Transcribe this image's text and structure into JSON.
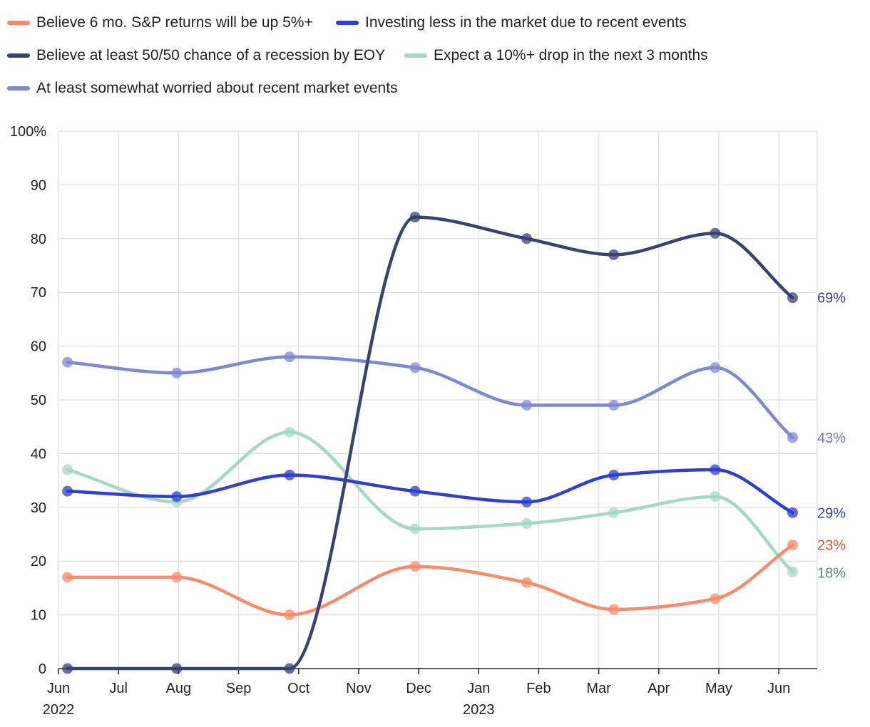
{
  "chart_data": {
    "type": "line",
    "title": "",
    "xlabel": "",
    "ylabel": "",
    "ylim": [
      0,
      100
    ],
    "y_ticks": [
      {
        "value": 0,
        "label": "0"
      },
      {
        "value": 10,
        "label": "10"
      },
      {
        "value": 20,
        "label": "20"
      },
      {
        "value": 30,
        "label": "30"
      },
      {
        "value": 40,
        "label": "40"
      },
      {
        "value": 50,
        "label": "50"
      },
      {
        "value": 60,
        "label": "60"
      },
      {
        "value": 70,
        "label": "70"
      },
      {
        "value": 80,
        "label": "80"
      },
      {
        "value": 90,
        "label": "90"
      },
      {
        "value": 100,
        "label": "100%"
      }
    ],
    "x_ticks": [
      {
        "month": 0,
        "label": "Jun",
        "year": "2022"
      },
      {
        "month": 1,
        "label": "Jul"
      },
      {
        "month": 2,
        "label": "Aug"
      },
      {
        "month": 3,
        "label": "Sep"
      },
      {
        "month": 4,
        "label": "Oct"
      },
      {
        "month": 5,
        "label": "Nov"
      },
      {
        "month": 6,
        "label": "Dec"
      },
      {
        "month": 7,
        "label": "Jan",
        "year": "2023"
      },
      {
        "month": 8,
        "label": "Feb"
      },
      {
        "month": 9,
        "label": "Mar"
      },
      {
        "month": 10,
        "label": "Apr"
      },
      {
        "month": 11,
        "label": "May"
      },
      {
        "month": 12,
        "label": "Jun"
      }
    ],
    "x": [
      0.15,
      1.97,
      3.85,
      5.94,
      7.8,
      9.25,
      10.94,
      12.23
    ],
    "grid": true,
    "legend_position": "top",
    "series": [
      {
        "name": "Believe 6 mo. S&P returns will be up 5%+",
        "color": "#fb8a6b",
        "label_color": "#d8553a",
        "end_label": "23%",
        "values": [
          17,
          17,
          10,
          19,
          16,
          11,
          13,
          23
        ]
      },
      {
        "name": "Investing less in the market due to recent events",
        "color": "#2f3fcf",
        "label_color": "#2f3fcf",
        "end_label": "29%",
        "values": [
          33,
          32,
          36,
          33,
          31,
          36,
          37,
          29
        ]
      },
      {
        "name": "Believe at least 50/50 chance of a recession by EOY",
        "color": "#3a4272",
        "label_color": "#3a4272",
        "end_label": "69%",
        "values": [
          0,
          0,
          0,
          84,
          80,
          77,
          81,
          69
        ]
      },
      {
        "name": "Expect a 10%+ drop in the next 3 months",
        "color": "#a5d8c3",
        "label_color": "#4e8f68",
        "end_label": "18%",
        "values": [
          37,
          31,
          44,
          26,
          27,
          29,
          32,
          18
        ]
      },
      {
        "name": "At least somewhat worried about recent market events",
        "color": "#8188d2",
        "label_color": "#6f77c9",
        "end_label": "43%",
        "values": [
          57,
          55,
          58,
          56,
          49,
          49,
          56,
          43
        ]
      }
    ]
  }
}
